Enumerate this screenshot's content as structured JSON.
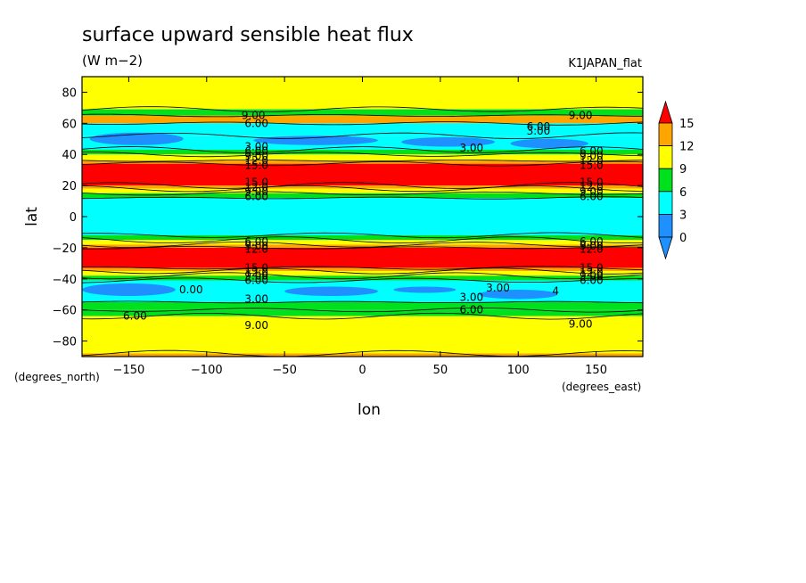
{
  "chart_data": {
    "type": "heatmap",
    "title": "surface upward sensible heat flux",
    "units": "(W m−2)",
    "dataset": "K1JAPAN_flat",
    "xlabel": "lon",
    "ylabel": "lat",
    "x_units": "(degrees_east)",
    "y_units": "(degrees_north)",
    "xlim": [
      -180,
      180
    ],
    "ylim": [
      -90,
      90
    ],
    "x_ticks": [
      -150,
      -100,
      -50,
      0,
      50,
      100,
      150
    ],
    "y_ticks": [
      -80,
      -60,
      -40,
      -20,
      0,
      20,
      40,
      60,
      80
    ],
    "colorbar": {
      "ticks": [
        0,
        3,
        6,
        9,
        12,
        15
      ],
      "levels": [
        {
          "min": null,
          "max": 0,
          "color": "#1e90ff"
        },
        {
          "min": 0,
          "max": 3,
          "color": "#1e90ff"
        },
        {
          "min": 3,
          "max": 6,
          "color": "#00ffff"
        },
        {
          "min": 6,
          "max": 9,
          "color": "#00e11e"
        },
        {
          "min": 9,
          "max": 12,
          "color": "#ffff00"
        },
        {
          "min": 12,
          "max": 15,
          "color": "#ffa500"
        },
        {
          "min": 15,
          "max": null,
          "color": "#ff0000"
        }
      ]
    },
    "bands": [
      {
        "lat_from": 90,
        "lat_to": 69,
        "color": "#ffff00"
      },
      {
        "lat_from": 69,
        "lat_to": 65,
        "color": "#00e11e"
      },
      {
        "lat_from": 65,
        "lat_to": 60,
        "color": "#ffa500"
      },
      {
        "lat_from": 60,
        "lat_to": 52,
        "color": "#00ffff"
      },
      {
        "lat_from": 52,
        "lat_to": 43,
        "color": "#00ffff"
      },
      {
        "lat_from": 43,
        "lat_to": 40,
        "color": "#00e11e"
      },
      {
        "lat_from": 40,
        "lat_to": 36,
        "color": "#ffff00"
      },
      {
        "lat_from": 36,
        "lat_to": 34,
        "color": "#ffa500"
      },
      {
        "lat_from": 34,
        "lat_to": 20,
        "color": "#ff0000"
      },
      {
        "lat_from": 20,
        "lat_to": 18,
        "color": "#ffa500"
      },
      {
        "lat_from": 18,
        "lat_to": 15,
        "color": "#ffff00"
      },
      {
        "lat_from": 15,
        "lat_to": 12,
        "color": "#00e11e"
      },
      {
        "lat_from": 12,
        "lat_to": -12,
        "color": "#00ffff"
      },
      {
        "lat_from": -12,
        "lat_to": -15,
        "color": "#00e11e"
      },
      {
        "lat_from": -15,
        "lat_to": -18,
        "color": "#ffff00"
      },
      {
        "lat_from": -18,
        "lat_to": -20,
        "color": "#ffa500"
      },
      {
        "lat_from": -20,
        "lat_to": -33,
        "color": "#ff0000"
      },
      {
        "lat_from": -33,
        "lat_to": -35,
        "color": "#ffa500"
      },
      {
        "lat_from": -35,
        "lat_to": -38,
        "color": "#ffff00"
      },
      {
        "lat_from": -38,
        "lat_to": -41,
        "color": "#00e11e"
      },
      {
        "lat_from": -41,
        "lat_to": -55,
        "color": "#00ffff"
      },
      {
        "lat_from": -55,
        "lat_to": -60,
        "color": "#00e11e"
      },
      {
        "lat_from": -60,
        "lat_to": -64,
        "color": "#00e11e"
      },
      {
        "lat_from": -64,
        "lat_to": -88,
        "color": "#ffff00"
      },
      {
        "lat_from": -88,
        "lat_to": -90,
        "color": "#ffa500"
      }
    ],
    "blobs": [
      {
        "lon": -125,
        "lat": 27,
        "rlon": 30,
        "rlat": 6,
        "color": "#ff0000"
      },
      {
        "lon": -35,
        "lat": 27,
        "rlon": 30,
        "rlat": 6,
        "color": "#ff0000"
      },
      {
        "lon": 45,
        "lat": 26,
        "rlon": 35,
        "rlat": 6,
        "color": "#ff0000"
      },
      {
        "lon": 135,
        "lat": 27,
        "rlon": 30,
        "rlat": 6,
        "color": "#ff0000"
      },
      {
        "lon": -145,
        "lat": 50,
        "rlon": 30,
        "rlat": 4,
        "color": "#1e90ff"
      },
      {
        "lon": -30,
        "lat": 49,
        "rlon": 40,
        "rlat": 3,
        "color": "#1e90ff"
      },
      {
        "lon": 55,
        "lat": 48,
        "rlon": 30,
        "rlat": 3,
        "color": "#1e90ff"
      },
      {
        "lon": 120,
        "lat": 47,
        "rlon": 25,
        "rlat": 3,
        "color": "#1e90ff"
      },
      {
        "lon": -150,
        "lat": -47,
        "rlon": 30,
        "rlat": 4,
        "color": "#1e90ff"
      },
      {
        "lon": -20,
        "lat": -48,
        "rlon": 30,
        "rlat": 3,
        "color": "#1e90ff"
      },
      {
        "lon": 40,
        "lat": -47,
        "rlon": 20,
        "rlat": 2,
        "color": "#1e90ff"
      },
      {
        "lon": 100,
        "lat": -50,
        "rlon": 25,
        "rlat": 3,
        "color": "#1e90ff"
      },
      {
        "lon": -40,
        "lat": -28,
        "rlon": 35,
        "rlat": 4,
        "color": "#ff0000"
      },
      {
        "lon": 60,
        "lat": -28,
        "rlon": 40,
        "rlat": 4,
        "color": "#ff0000"
      }
    ],
    "contour_labels": [
      {
        "text": "9.00",
        "lon": -70,
        "lat": 65
      },
      {
        "text": "6.00",
        "lon": -68,
        "lat": 60
      },
      {
        "text": "3.00",
        "lon": -68,
        "lat": 45
      },
      {
        "text": "6.00",
        "lon": -68,
        "lat": 42
      },
      {
        "text": "9.00",
        "lon": -68,
        "lat": 39
      },
      {
        "text": "12.0",
        "lon": -68,
        "lat": 36
      },
      {
        "text": "15.0",
        "lon": -68,
        "lat": 33
      },
      {
        "text": "15.0",
        "lon": -68,
        "lat": 22
      },
      {
        "text": "12.0",
        "lon": -68,
        "lat": 19
      },
      {
        "text": "9.00",
        "lon": -68,
        "lat": 16
      },
      {
        "text": "6.00",
        "lon": -68,
        "lat": 13
      },
      {
        "text": "6.00",
        "lon": -68,
        "lat": -16
      },
      {
        "text": "9.00",
        "lon": -68,
        "lat": -19
      },
      {
        "text": "12.0",
        "lon": -68,
        "lat": -21
      },
      {
        "text": "15.0",
        "lon": -68,
        "lat": -33
      },
      {
        "text": "12.0",
        "lon": -68,
        "lat": -36
      },
      {
        "text": "9.00",
        "lon": -68,
        "lat": -38
      },
      {
        "text": "6.00",
        "lon": -68,
        "lat": -41
      },
      {
        "text": "3.00",
        "lon": -68,
        "lat": -53
      },
      {
        "text": "9.00",
        "lon": -68,
        "lat": -70
      },
      {
        "text": "0.00",
        "lon": -110,
        "lat": -47
      },
      {
        "text": "6.00",
        "lon": -146,
        "lat": -64
      },
      {
        "text": "3.00",
        "lon": 70,
        "lat": 44
      },
      {
        "text": "9.00",
        "lon": 140,
        "lat": 65
      },
      {
        "text": "6.00",
        "lon": 113,
        "lat": 58
      },
      {
        "text": "3.00",
        "lon": 113,
        "lat": 55
      },
      {
        "text": "6.00",
        "lon": 147,
        "lat": 42
      },
      {
        "text": "9.00",
        "lon": 147,
        "lat": 39
      },
      {
        "text": "12.0",
        "lon": 147,
        "lat": 36
      },
      {
        "text": "15.0",
        "lon": 147,
        "lat": 33
      },
      {
        "text": "15.0",
        "lon": 147,
        "lat": 22
      },
      {
        "text": "12.0",
        "lon": 147,
        "lat": 19
      },
      {
        "text": "9.00",
        "lon": 147,
        "lat": 16
      },
      {
        "text": "6.00",
        "lon": 147,
        "lat": 13
      },
      {
        "text": "6.00",
        "lon": 147,
        "lat": -16
      },
      {
        "text": "9.00",
        "lon": 147,
        "lat": -19
      },
      {
        "text": "12.0",
        "lon": 147,
        "lat": -21
      },
      {
        "text": "15.0",
        "lon": 147,
        "lat": -33
      },
      {
        "text": "12.0",
        "lon": 147,
        "lat": -36
      },
      {
        "text": "9.00",
        "lon": 147,
        "lat": -38
      },
      {
        "text": "6.00",
        "lon": 147,
        "lat": -41
      },
      {
        "text": "3.00",
        "lon": 87,
        "lat": -46
      },
      {
        "text": "3.00",
        "lon": 70,
        "lat": -52
      },
      {
        "text": "6.00",
        "lon": 70,
        "lat": -60
      },
      {
        "text": "9.00",
        "lon": 140,
        "lat": -69
      },
      {
        "text": "4",
        "lon": 124,
        "lat": -48
      }
    ]
  }
}
